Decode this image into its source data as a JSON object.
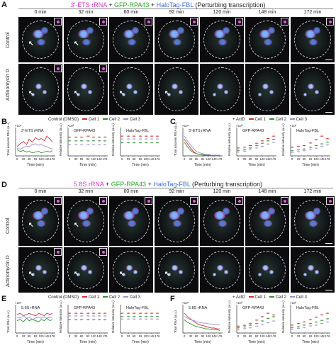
{
  "panels": {
    "a": "A",
    "b": "B",
    "c": "C",
    "d": "D",
    "e": "E",
    "f": "F"
  },
  "title_top": {
    "part1": "3′-ETS rRNA",
    "plus1": " + ",
    "part2": "GFP-RPA43",
    "plus2": " + ",
    "part3": "HaloTag-FBL",
    "part4": " (Perturbing transcription)"
  },
  "title_mid": {
    "part1": "5.8S rRNA",
    "plus1": " + ",
    "part2": "GFP-RPA43",
    "plus2": " + ",
    "part3": "HaloTag-FBL",
    "part4": " (Perturbing transcription)"
  },
  "timepoints": [
    "0 min",
    "32 min",
    "60 min",
    "92 min",
    "120 min",
    "148 min",
    "172 min"
  ],
  "row_labels": {
    "control": "Control",
    "actd": "Actinomycin D"
  },
  "legend_b": {
    "prefix": "Control (DMSO)",
    "cell1": "Cell 1",
    "cell2": "Cell 2",
    "cell3": "Cell 3"
  },
  "legend_c": {
    "actd": "ActD",
    "cell1": "Cell 1",
    "cell2": "Cell 2",
    "cell3": "Cell 3"
  },
  "colors": {
    "cell1": "#d03030",
    "cell2": "#2f8f2f",
    "cell3": "#9a8ed8",
    "gfp_mean": "#d04040",
    "gfp_alt": "#3c9a3c",
    "grey": "#444444"
  },
  "plots": {
    "b1": {
      "label": "3′-ETS rRNA",
      "ylabel": "Total nascent RNA (a.u.)",
      "exp": "×10⁴",
      "xlabel": "Time (min)"
    },
    "b2": {
      "label": "GFP-RPA43",
      "ylabel": "Relative intensity (a.u.)",
      "exp": "×10²",
      "xlabel": "Time (min)"
    },
    "b3": {
      "label": "HaloTag-FBL",
      "ylabel": "Relative intensity (a.u.)",
      "exp": "",
      "xlabel": "Time (min)"
    },
    "c1": {
      "label": "3′-ETS rRNA",
      "ylabel": "Total nascent RNA (a.u.)",
      "exp": "×10⁴",
      "xlabel": "Time (min)"
    },
    "c2": {
      "label": "GFP-RPA43",
      "ylabel": "Relative intensity (a.u.)",
      "exp": "×10²",
      "xlabel": "Time (min)"
    },
    "c3": {
      "label": "HaloTag-FBL",
      "ylabel": "Relative intensity (a.u.)",
      "exp": "×10²",
      "xlabel": "Time (min)"
    },
    "e1": {
      "label": "5.8S rRNA",
      "ylabel": "Total RNA (a.u.)",
      "exp": "×10⁴",
      "xlabel": "Time (min)"
    },
    "e2": {
      "label": "GFP-RPA43",
      "ylabel": "Relative intensity (a.u.)",
      "exp": "",
      "xlabel": "Time (min)"
    },
    "e3": {
      "label": "HaloTag-FBL",
      "ylabel": "Relative intensity (a.u.)",
      "exp": "",
      "xlabel": "Time (min)"
    },
    "f1": {
      "label": "5.8S rRNA",
      "ylabel": "Total RNA (a.u.)",
      "exp": "×10⁴",
      "xlabel": "Time (min)"
    },
    "f2": {
      "label": "GFP-RPA43",
      "ylabel": "Relative intensity (a.u.)",
      "exp": "×10²",
      "xlabel": "Time (min)"
    },
    "f3": {
      "label": "HaloTag-FBL",
      "ylabel": "Relative intensity (a.u.)",
      "exp": "×10²",
      "xlabel": "Time (min)"
    }
  },
  "xticks": [
    "0",
    "32",
    "60",
    "92",
    "120",
    "148",
    "176"
  ],
  "xticks_b1": [
    "0",
    "32",
    "60",
    "92",
    "120",
    "148",
    "176"
  ],
  "chart_data": [
    {
      "id": "B-left",
      "type": "line",
      "title": "3′-ETS rRNA",
      "xlabel": "Time (min)",
      "ylabel": "Total nascent RNA (a.u.)",
      "x": [
        0,
        16,
        32,
        48,
        60,
        76,
        92,
        108,
        120,
        136,
        148,
        164,
        176
      ],
      "series": [
        {
          "name": "Cell 1",
          "values": [
            1.2,
            1.6,
            1.9,
            1.5,
            2.2,
            1.8,
            2.4,
            2.1,
            2.3,
            2.0,
            2.6,
            2.2,
            1.8
          ]
        },
        {
          "name": "Cell 2",
          "values": [
            0.8,
            0.6,
            0.7,
            0.5,
            0.6,
            0.4,
            0.5,
            0.6,
            0.4,
            0.5,
            0.6,
            0.5,
            0.7
          ]
        },
        {
          "name": "Cell 3",
          "values": [
            1.0,
            0.9,
            1.1,
            1.3,
            1.2,
            1.5,
            1.6,
            1.4,
            1.5,
            1.3,
            1.2,
            1.0,
            0.9
          ]
        }
      ]
    },
    {
      "id": "B-mid",
      "type": "scatter",
      "title": "GFP-RPA43",
      "xlabel": "Time (min)",
      "ylabel": "Relative intensity (a.u.)",
      "x": [
        0,
        32,
        60,
        92,
        120,
        148,
        176
      ],
      "series": [
        {
          "name": "Cell 1",
          "values": [
            2.0,
            2.0,
            2.0,
            2.1,
            2.0,
            2.0,
            2.0
          ]
        },
        {
          "name": "Cell 2",
          "values": [
            1.6,
            1.6,
            1.6,
            1.6,
            1.6,
            1.6,
            1.6
          ]
        },
        {
          "name": "Cell 3",
          "values": [
            1.2,
            1.2,
            1.2,
            1.2,
            1.2,
            1.2,
            1.2
          ]
        }
      ]
    },
    {
      "id": "B-right",
      "type": "scatter",
      "title": "HaloTag-FBL",
      "xlabel": "Time (min)",
      "ylabel": "Relative intensity (a.u.)",
      "x": [
        0,
        32,
        60,
        92,
        120,
        148,
        176
      ],
      "series": [
        {
          "name": "Cell 1",
          "values": [
            2.1,
            2.1,
            2.1,
            2.1,
            2.1,
            2.1,
            2.1
          ]
        },
        {
          "name": "Cell 2",
          "values": [
            1.4,
            1.4,
            1.4,
            1.4,
            1.4,
            1.4,
            1.4
          ]
        },
        {
          "name": "Cell 3",
          "values": [
            1.8,
            1.8,
            1.8,
            1.8,
            1.8,
            1.8,
            1.8
          ]
        }
      ]
    },
    {
      "id": "C-left",
      "type": "line",
      "title": "3′-ETS rRNA",
      "xlabel": "Time (min)",
      "ylabel": "Total nascent RNA (a.u.)",
      "x": [
        0,
        16,
        32,
        48,
        60,
        76,
        92,
        108,
        120,
        136,
        148,
        164,
        176
      ],
      "series": [
        {
          "name": "Cell 1",
          "values": [
            2.2,
            1.6,
            1.0,
            0.5,
            0.3,
            0.2,
            0.15,
            0.1,
            0.1,
            0.1,
            0.1,
            0.1,
            0.1
          ]
        },
        {
          "name": "Cell 2",
          "values": [
            1.8,
            1.2,
            0.7,
            0.4,
            0.3,
            0.2,
            0.1,
            0.1,
            0.1,
            0.1,
            0.1,
            0.1,
            0.1
          ]
        },
        {
          "name": "Cell 3",
          "values": [
            2.6,
            2.0,
            1.4,
            0.9,
            0.6,
            0.4,
            0.3,
            0.2,
            0.2,
            0.1,
            0.1,
            0.1,
            0.1
          ]
        }
      ]
    },
    {
      "id": "C-mid",
      "type": "scatter",
      "title": "GFP-RPA43",
      "xlabel": "Time (min)",
      "ylabel": "Relative intensity (a.u.)",
      "x": [
        0,
        32,
        60,
        92,
        120,
        148,
        176
      ],
      "series": [
        {
          "name": "Cell 1",
          "values": [
            1.0,
            1.1,
            1.3,
            1.6,
            1.9,
            2.2,
            2.5
          ]
        },
        {
          "name": "Cell 2",
          "values": [
            0.7,
            0.8,
            1.0,
            1.3,
            1.6,
            1.9,
            2.1
          ]
        },
        {
          "name": "Cell 3",
          "values": [
            0.5,
            0.6,
            0.8,
            1.0,
            1.2,
            1.5,
            1.7
          ]
        }
      ]
    },
    {
      "id": "C-right",
      "type": "scatter",
      "title": "HaloTag-FBL",
      "xlabel": "Time (min)",
      "ylabel": "Relative intensity (a.u.)",
      "x": [
        0,
        32,
        60,
        92,
        120,
        148,
        176
      ],
      "series": [
        {
          "name": "Cell 1",
          "values": [
            1.0,
            1.1,
            1.2,
            1.5,
            1.9,
            2.3,
            2.0
          ]
        },
        {
          "name": "Cell 2",
          "values": [
            0.6,
            0.7,
            0.8,
            1.0,
            1.2,
            1.4,
            1.6
          ]
        },
        {
          "name": "Cell 3",
          "values": [
            0.4,
            0.5,
            0.6,
            0.8,
            0.9,
            1.1,
            1.3
          ]
        }
      ]
    },
    {
      "id": "E-left",
      "type": "line",
      "title": "5.8S rRNA",
      "xlabel": "Time (min)",
      "ylabel": "Total RNA (a.u.)",
      "x": [
        0,
        16,
        32,
        48,
        60,
        76,
        92,
        108,
        120,
        136,
        148,
        164,
        176
      ],
      "series": [
        {
          "name": "Cell 1",
          "values": [
            1.5,
            1.6,
            1.4,
            1.5,
            1.6,
            1.5,
            1.4,
            1.6,
            1.5,
            1.4,
            1.6,
            1.5,
            1.6
          ]
        },
        {
          "name": "Cell 2",
          "values": [
            1.0,
            1.1,
            0.9,
            1.2,
            1.0,
            1.1,
            1.0,
            0.9,
            1.1,
            1.0,
            1.2,
            1.0,
            1.1
          ]
        },
        {
          "name": "Cell 3",
          "values": [
            1.3,
            1.2,
            1.4,
            1.2,
            1.3,
            1.1,
            1.2,
            1.3,
            1.2,
            1.3,
            1.2,
            1.3,
            1.2
          ]
        }
      ]
    },
    {
      "id": "E-mid",
      "type": "scatter",
      "title": "GFP-RPA43",
      "xlabel": "Time (min)",
      "ylabel": "Relative intensity (a.u.)",
      "x": [
        0,
        32,
        60,
        92,
        120,
        148,
        176
      ],
      "series": [
        {
          "name": "Cell 1",
          "values": [
            2.2,
            2.2,
            2.2,
            2.2,
            2.2,
            2.2,
            2.2
          ]
        },
        {
          "name": "Cell 2",
          "values": [
            1.5,
            1.5,
            1.5,
            1.5,
            1.5,
            1.5,
            1.5
          ]
        },
        {
          "name": "Cell 3",
          "values": [
            1.9,
            1.9,
            1.9,
            1.9,
            1.9,
            1.9,
            1.9
          ]
        }
      ]
    },
    {
      "id": "E-right",
      "type": "scatter",
      "title": "HaloTag-FBL",
      "xlabel": "Time (min)",
      "ylabel": "Relative intensity (a.u.)",
      "x": [
        0,
        32,
        60,
        92,
        120,
        148,
        176
      ],
      "series": [
        {
          "name": "Cell 1",
          "values": [
            2.4,
            2.4,
            2.4,
            2.4,
            2.4,
            2.4,
            2.4
          ]
        },
        {
          "name": "Cell 2",
          "values": [
            2.0,
            2.0,
            2.0,
            2.0,
            2.0,
            2.0,
            2.0
          ]
        },
        {
          "name": "Cell 3",
          "values": [
            1.7,
            1.7,
            1.7,
            1.7,
            1.7,
            1.7,
            1.7
          ]
        }
      ]
    },
    {
      "id": "F-left",
      "type": "line",
      "title": "5.8S rRNA",
      "xlabel": "Time (min)",
      "ylabel": "Total RNA (a.u.)",
      "x": [
        0,
        16,
        32,
        48,
        60,
        76,
        92,
        108,
        120,
        136,
        148,
        164,
        176
      ],
      "series": [
        {
          "name": "Cell 1",
          "values": [
            2.4,
            2.0,
            1.7,
            1.4,
            1.2,
            1.0,
            0.9,
            0.8,
            0.7,
            0.6,
            0.6,
            0.5,
            0.5
          ]
        },
        {
          "name": "Cell 2",
          "values": [
            1.6,
            1.3,
            1.1,
            0.9,
            0.8,
            0.7,
            0.6,
            0.5,
            0.5,
            0.4,
            0.4,
            0.4,
            0.3
          ]
        },
        {
          "name": "Cell 3",
          "values": [
            2.0,
            1.8,
            1.6,
            1.5,
            1.4,
            1.3,
            1.2,
            1.2,
            1.1,
            1.1,
            1.0,
            1.0,
            1.0
          ]
        }
      ]
    },
    {
      "id": "F-mid",
      "type": "scatter",
      "title": "GFP-RPA43",
      "xlabel": "Time (min)",
      "ylabel": "Relative intensity (a.u.)",
      "x": [
        0,
        32,
        60,
        92,
        120,
        148,
        176
      ],
      "series": [
        {
          "name": "Cell 1",
          "values": [
            0.8,
            0.9,
            1.1,
            1.5,
            1.9,
            2.3,
            2.1
          ]
        },
        {
          "name": "Cell 2",
          "values": [
            0.6,
            0.7,
            0.9,
            1.1,
            1.4,
            1.7,
            1.9
          ]
        },
        {
          "name": "Cell 3",
          "values": [
            0.4,
            0.5,
            0.6,
            0.8,
            1.0,
            1.2,
            1.4
          ]
        }
      ]
    },
    {
      "id": "F-right",
      "type": "scatter",
      "title": "HaloTag-FBL",
      "xlabel": "Time (min)",
      "ylabel": "Relative intensity (a.u.)",
      "x": [
        0,
        32,
        60,
        92,
        120,
        148,
        176
      ],
      "series": [
        {
          "name": "Cell 1",
          "values": [
            1.0,
            1.2,
            1.4,
            1.7,
            2.0,
            2.3,
            2.5
          ]
        },
        {
          "name": "Cell 2",
          "values": [
            0.7,
            0.8,
            1.0,
            1.2,
            1.4,
            1.6,
            1.8
          ]
        },
        {
          "name": "Cell 3",
          "values": [
            0.5,
            0.6,
            0.7,
            0.9,
            1.0,
            1.2,
            1.4
          ]
        }
      ]
    }
  ]
}
